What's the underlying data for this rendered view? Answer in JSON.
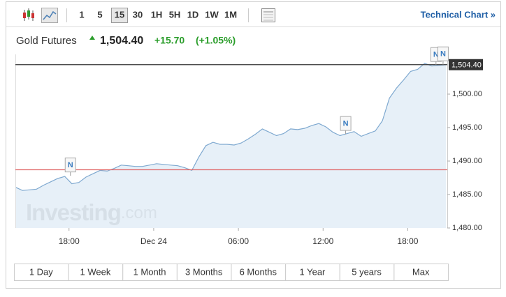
{
  "toolbar": {
    "intervals": [
      "1",
      "5",
      "15",
      "30",
      "1H",
      "5H",
      "1D",
      "1W",
      "1M"
    ],
    "selected": "15",
    "technical_chart": "Technical Chart »"
  },
  "header": {
    "name": "Gold Futures",
    "price": "1,504.40",
    "change": "+15.70",
    "change_percent": "(+1.05%)"
  },
  "watermark": [
    "Investing",
    ".com"
  ],
  "chart_data": {
    "type": "area",
    "color": "#7fa9d0",
    "fill": "#e3edf7",
    "x": [
      14.2,
      14.7,
      15.2,
      15.7,
      16.2,
      16.7,
      17.2,
      17.7,
      18.2,
      18.7,
      19.2,
      19.7,
      20.2,
      20.7,
      21.2,
      21.7,
      22.2,
      22.7,
      23.2,
      23.7,
      24.2,
      24.7,
      25.2,
      25.7,
      26.2,
      26.7,
      27.2,
      27.7,
      28.2,
      28.7,
      29.2,
      29.7,
      30.2,
      30.7,
      31.2,
      31.7,
      32.2,
      32.7,
      33.2,
      33.7,
      34.2,
      34.7,
      35.2,
      35.7,
      36.2,
      36.7,
      37.2,
      37.7,
      38.2,
      38.7,
      39.2,
      39.7,
      40.2,
      40.7,
      41.2,
      41.7,
      42.2,
      42.7,
      43.2,
      43.7,
      44.2,
      44.7
    ],
    "values": [
      1486.1,
      1485.6,
      1485.7,
      1485.8,
      1486.4,
      1486.9,
      1487.4,
      1487.7,
      1486.6,
      1486.8,
      1487.6,
      1488.1,
      1488.6,
      1488.5,
      1488.9,
      1489.4,
      1489.3,
      1489.2,
      1489.2,
      1489.4,
      1489.6,
      1489.5,
      1489.4,
      1489.3,
      1489.0,
      1488.6,
      1490.6,
      1492.3,
      1492.8,
      1492.5,
      1492.5,
      1492.4,
      1492.7,
      1493.3,
      1494.0,
      1494.8,
      1494.3,
      1493.8,
      1494.1,
      1494.8,
      1494.7,
      1494.9,
      1495.3,
      1495.6,
      1495.1,
      1494.3,
      1493.8,
      1494.1,
      1494.4,
      1493.7,
      1494.1,
      1494.5,
      1496.0,
      1499.4,
      1500.9,
      1502.1,
      1503.4,
      1503.7,
      1504.6,
      1504.2,
      1504.3,
      1504.4
    ],
    "xlim": [
      14.2,
      44.8
    ],
    "xticks": [
      {
        "value": 18,
        "label": "18:00"
      },
      {
        "value": 24,
        "label": "Dec 24"
      },
      {
        "value": 30,
        "label": "06:00"
      },
      {
        "value": 36,
        "label": "12:00"
      },
      {
        "value": 42,
        "label": "18:00"
      }
    ],
    "ylim": [
      1480,
      1505
    ],
    "yticks": [
      {
        "value": 1480,
        "label": "1,480.00"
      },
      {
        "value": 1485,
        "label": "1,485.00"
      },
      {
        "value": 1490,
        "label": "1,490.00"
      },
      {
        "value": 1495,
        "label": "1,495.00"
      },
      {
        "value": 1500,
        "label": "1,500.00"
      }
    ],
    "reference_lines": [
      {
        "value": 1504.4,
        "color": "#333333",
        "label": "1,504.40"
      },
      {
        "value": 1488.7,
        "color": "#e06666"
      }
    ],
    "annotations": [
      {
        "text": "N",
        "x": 18.1,
        "y": 1487.8
      },
      {
        "text": "N",
        "x": 37.6,
        "y": 1494.0
      },
      {
        "text": "N",
        "x": 44.0,
        "y": 1504.3
      },
      {
        "text": "N",
        "x": 44.5,
        "y": 1504.4
      }
    ],
    "grid": false
  },
  "ranges": [
    "1 Day",
    "1 Week",
    "1 Month",
    "3 Months",
    "6 Months",
    "1 Year",
    "5 years",
    "Max"
  ]
}
